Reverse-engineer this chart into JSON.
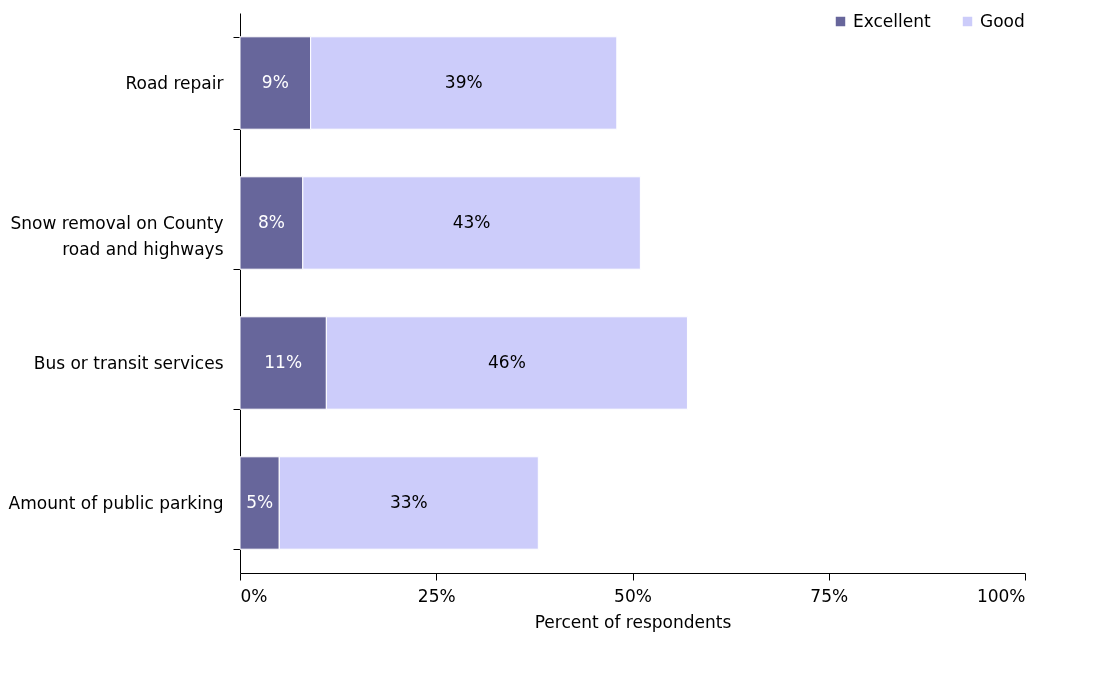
{
  "chart_data": {
    "type": "bar",
    "orientation": "horizontal",
    "stacked": true,
    "xlabel": "Percent of respondents",
    "categories": [
      "Road repair",
      "Snow removal on County road and highways",
      "Bus or transit services",
      "Amount of public parking"
    ],
    "series": [
      {
        "name": "Excellent",
        "color": "#67669b",
        "values": [
          9,
          8,
          11,
          5
        ],
        "value_labels": [
          "9%",
          "8%",
          "11%",
          "5%"
        ]
      },
      {
        "name": "Good",
        "color": "#ccccfa",
        "values": [
          39,
          43,
          46,
          33
        ],
        "value_labels": [
          "39%",
          "43%",
          "46%",
          "33%"
        ]
      }
    ],
    "xlim": [
      0,
      100
    ],
    "xticks": [
      {
        "value": 0,
        "label": "0%"
      },
      {
        "value": 25,
        "label": "25%"
      },
      {
        "value": 50,
        "label": "50%"
      },
      {
        "value": 75,
        "label": "75%"
      },
      {
        "value": 100,
        "label": "100%"
      }
    ],
    "grid": false,
    "legend": "top right"
  }
}
